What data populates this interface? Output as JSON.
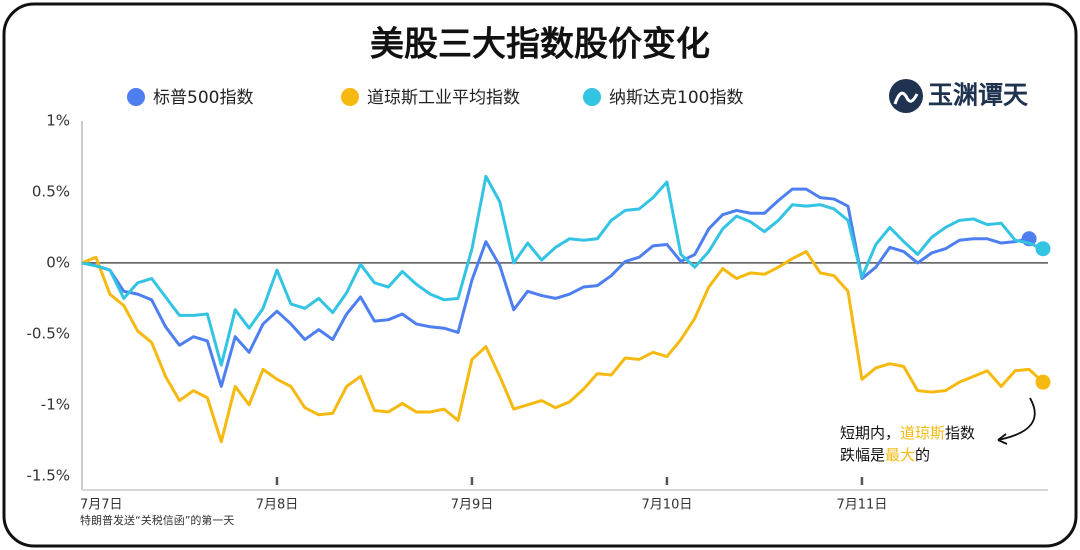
{
  "chart_data": {
    "type": "line",
    "title": "美股三大指数股价变化",
    "logo": "玉渊谭天",
    "footnote": "特朗普发送“关税信函”的第一天",
    "annotation": [
      [
        "短期内，",
        "道琼斯",
        "指数"
      ],
      [
        "跌幅是",
        "最大",
        "的"
      ]
    ],
    "categories": [
      "7月7日",
      null,
      null,
      null,
      null,
      null,
      null,
      null,
      null,
      null,
      null,
      null,
      null,
      null,
      "7月8日",
      null,
      null,
      null,
      null,
      null,
      null,
      null,
      null,
      null,
      null,
      null,
      null,
      null,
      "7月9日",
      null,
      null,
      null,
      null,
      null,
      null,
      null,
      null,
      null,
      null,
      null,
      null,
      null,
      "7月10日",
      null,
      null,
      null,
      null,
      null,
      null,
      null,
      null,
      null,
      null,
      null,
      null,
      null,
      "7月11日",
      null,
      null,
      null,
      null,
      null,
      null,
      null,
      null,
      null,
      null,
      null,
      null,
      null
    ],
    "series": [
      {
        "name": "标普500指数",
        "color": "#4d7ff0",
        "values": [
          0,
          -0.02,
          -0.05,
          -0.2,
          -0.22,
          -0.26,
          -0.45,
          -0.58,
          -0.52,
          -0.55,
          -0.87,
          -0.52,
          -0.63,
          -0.43,
          -0.34,
          -0.43,
          -0.54,
          -0.47,
          -0.54,
          -0.36,
          -0.24,
          -0.41,
          -0.4,
          -0.36,
          -0.43,
          -0.45,
          -0.46,
          -0.49,
          -0.12,
          0.15,
          -0.02,
          -0.33,
          -0.2,
          -0.23,
          -0.25,
          -0.22,
          -0.17,
          -0.16,
          -0.09,
          0.01,
          0.04,
          0.12,
          0.13,
          0.01,
          0.06,
          0.24,
          0.34,
          0.37,
          0.35,
          0.35,
          0.44,
          0.52,
          0.52,
          0.46,
          0.45,
          0.4,
          -0.11,
          -0.03,
          0.11,
          0.08,
          0.0,
          0.07,
          0.1,
          0.16,
          0.17,
          0.17,
          0.14,
          0.15,
          0.17,
          null
        ]
      },
      {
        "name": "道琼斯工业平均指数",
        "color": "#f6b90f",
        "values": [
          0,
          0.04,
          -0.22,
          -0.3,
          -0.48,
          -0.56,
          -0.8,
          -0.97,
          -0.9,
          -0.95,
          -1.26,
          -0.87,
          -1.0,
          -0.75,
          -0.82,
          -0.87,
          -1.02,
          -1.07,
          -1.06,
          -0.87,
          -0.8,
          -1.04,
          -1.05,
          -0.99,
          -1.05,
          -1.05,
          -1.03,
          -1.11,
          -0.68,
          -0.59,
          -0.8,
          -1.03,
          -1.0,
          -0.97,
          -1.02,
          -0.98,
          -0.89,
          -0.78,
          -0.79,
          -0.67,
          -0.68,
          -0.63,
          -0.66,
          -0.54,
          -0.39,
          -0.17,
          -0.04,
          -0.11,
          -0.07,
          -0.08,
          -0.03,
          0.03,
          0.08,
          -0.07,
          -0.09,
          -0.2,
          -0.82,
          -0.74,
          -0.71,
          -0.73,
          -0.9,
          -0.91,
          -0.9,
          -0.84,
          -0.8,
          -0.76,
          -0.87,
          -0.76,
          -0.75,
          -0.84
        ]
      },
      {
        "name": "纳斯达克100指数",
        "color": "#33c3e3",
        "values": [
          0,
          -0.02,
          -0.05,
          -0.25,
          -0.14,
          -0.11,
          -0.24,
          -0.37,
          -0.37,
          -0.36,
          -0.72,
          -0.33,
          -0.46,
          -0.32,
          -0.05,
          -0.29,
          -0.32,
          -0.25,
          -0.35,
          -0.21,
          -0.01,
          -0.14,
          -0.17,
          -0.06,
          -0.15,
          -0.22,
          -0.26,
          -0.25,
          0.1,
          0.61,
          0.43,
          0.0,
          0.14,
          0.02,
          0.11,
          0.17,
          0.16,
          0.17,
          0.3,
          0.37,
          0.38,
          0.46,
          0.57,
          0.06,
          -0.03,
          0.08,
          0.24,
          0.33,
          0.29,
          0.22,
          0.3,
          0.41,
          0.4,
          0.41,
          0.38,
          0.3,
          -0.1,
          0.13,
          0.25,
          0.15,
          0.06,
          0.18,
          0.25,
          0.3,
          0.31,
          0.27,
          0.28,
          0.16,
          0.14,
          0.1
        ]
      }
    ],
    "ylim": [
      -1.6,
      1
    ],
    "yticks": [
      {
        "value": 1,
        "label": "1%"
      },
      {
        "value": 0.5,
        "label": "0.5%"
      },
      {
        "value": 0,
        "label": "0%"
      },
      {
        "value": -0.5,
        "label": "-0.5%"
      },
      {
        "value": -1,
        "label": "-1%"
      },
      {
        "value": -1.5,
        "label": "-1.5%"
      }
    ],
    "hline": 0,
    "grid": false,
    "end_markers": true
  }
}
